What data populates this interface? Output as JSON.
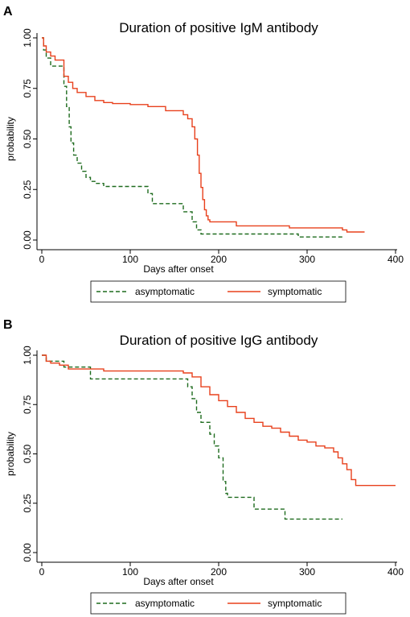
{
  "chart_data": [
    {
      "panel": "A",
      "type": "line",
      "title": "Duration of positive IgM antibody",
      "xlabel": "Days after onset",
      "ylabel": "probability",
      "xlim": [
        0,
        400
      ],
      "ylim": [
        0,
        1
      ],
      "xticks": [
        0,
        100,
        200,
        300,
        400
      ],
      "yticks": [
        0,
        0.25,
        0.5,
        0.75,
        1
      ],
      "ytick_labels": [
        "0.00",
        "0.25",
        "0.50",
        "0.75",
        "1.00"
      ],
      "grid": false,
      "legend_position": "bottom",
      "series": [
        {
          "name": "asymptomatic",
          "color": "#1e6b1e",
          "style": "dashed",
          "step": true,
          "x": [
            0,
            2,
            5,
            10,
            25,
            28,
            31,
            33,
            36,
            40,
            45,
            50,
            55,
            60,
            70,
            120,
            125,
            140,
            160,
            170,
            175,
            180,
            190,
            290,
            340
          ],
          "y": [
            1.0,
            0.94,
            0.9,
            0.86,
            0.76,
            0.66,
            0.56,
            0.48,
            0.42,
            0.38,
            0.34,
            0.31,
            0.29,
            0.28,
            0.265,
            0.23,
            0.18,
            0.18,
            0.14,
            0.09,
            0.05,
            0.03,
            0.03,
            0.015,
            0.015
          ]
        },
        {
          "name": "symptomatic",
          "color": "#e8401c",
          "style": "solid",
          "step": true,
          "x": [
            0,
            2,
            5,
            10,
            15,
            25,
            30,
            35,
            40,
            50,
            60,
            70,
            80,
            100,
            120,
            140,
            160,
            165,
            170,
            173,
            176,
            178,
            180,
            182,
            184,
            186,
            188,
            190,
            200,
            220,
            280,
            340,
            345,
            365
          ],
          "y": [
            1.0,
            0.96,
            0.93,
            0.91,
            0.89,
            0.81,
            0.78,
            0.75,
            0.73,
            0.71,
            0.69,
            0.68,
            0.675,
            0.67,
            0.66,
            0.64,
            0.62,
            0.6,
            0.56,
            0.5,
            0.42,
            0.33,
            0.26,
            0.2,
            0.15,
            0.12,
            0.1,
            0.09,
            0.09,
            0.07,
            0.06,
            0.05,
            0.04,
            0.04
          ]
        }
      ]
    },
    {
      "panel": "B",
      "type": "line",
      "title": "Duration of positive IgG antibody",
      "xlabel": "Days after onset",
      "ylabel": "probability",
      "xlim": [
        0,
        400
      ],
      "ylim": [
        0,
        1
      ],
      "xticks": [
        0,
        100,
        200,
        300,
        400
      ],
      "yticks": [
        0,
        0.25,
        0.5,
        0.75,
        1
      ],
      "ytick_labels": [
        "0.00",
        "0.25",
        "0.50",
        "0.75",
        "1.00"
      ],
      "grid": false,
      "legend_position": "bottom",
      "series": [
        {
          "name": "asymptomatic",
          "color": "#1e6b1e",
          "style": "dashed",
          "step": true,
          "x": [
            0,
            5,
            25,
            55,
            160,
            165,
            170,
            175,
            180,
            190,
            195,
            200,
            205,
            208,
            210,
            240,
            275,
            340
          ],
          "y": [
            1.0,
            0.97,
            0.94,
            0.88,
            0.88,
            0.84,
            0.78,
            0.71,
            0.66,
            0.6,
            0.54,
            0.48,
            0.36,
            0.3,
            0.28,
            0.22,
            0.17,
            0.17
          ]
        },
        {
          "name": "symptomatic",
          "color": "#e8401c",
          "style": "solid",
          "step": true,
          "x": [
            0,
            5,
            10,
            20,
            30,
            50,
            70,
            100,
            130,
            160,
            170,
            180,
            190,
            200,
            210,
            220,
            230,
            240,
            250,
            260,
            270,
            280,
            290,
            300,
            310,
            320,
            330,
            335,
            340,
            345,
            350,
            355,
            365,
            400
          ],
          "y": [
            1.0,
            0.97,
            0.96,
            0.95,
            0.93,
            0.93,
            0.92,
            0.92,
            0.92,
            0.91,
            0.89,
            0.84,
            0.8,
            0.77,
            0.74,
            0.71,
            0.68,
            0.66,
            0.64,
            0.63,
            0.61,
            0.59,
            0.57,
            0.56,
            0.54,
            0.53,
            0.51,
            0.48,
            0.45,
            0.42,
            0.37,
            0.34,
            0.34,
            0.34
          ]
        }
      ]
    }
  ]
}
